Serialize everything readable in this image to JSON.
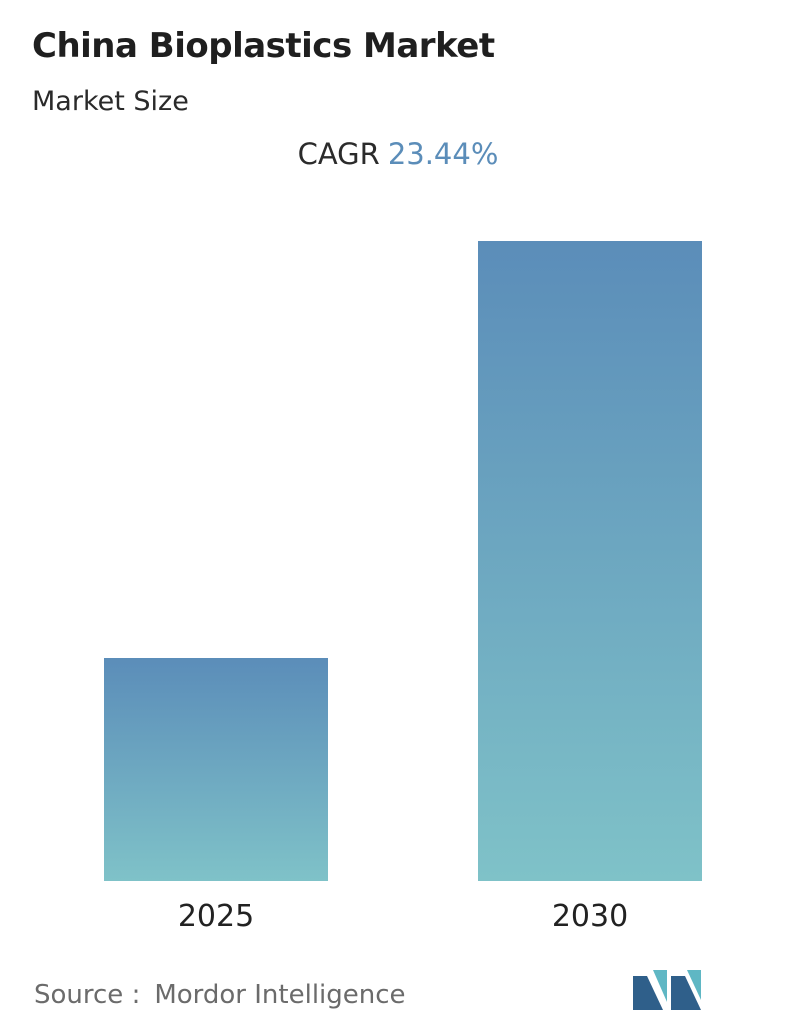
{
  "header": {
    "title": "China Bioplastics Market",
    "subtitle": "Market Size"
  },
  "cagr": {
    "label": "CAGR",
    "value": "23.44%"
  },
  "footer": {
    "source_label": "Source :",
    "source_value": "Mordor Intelligence"
  },
  "colors": {
    "bar_top": "#5b8db9",
    "bar_bottom": "#7fc2c8",
    "cagr_value": "#5b8db9",
    "logo_dark": "#2f5f8a",
    "logo_light": "#5fb7c4"
  },
  "chart_data": {
    "type": "bar",
    "categories": [
      "2025",
      "2030"
    ],
    "values": [
      1,
      2.87
    ],
    "title": "China Bioplastics Market",
    "xlabel": "",
    "ylabel": "",
    "grid": false,
    "value_labels_shown": false
  }
}
